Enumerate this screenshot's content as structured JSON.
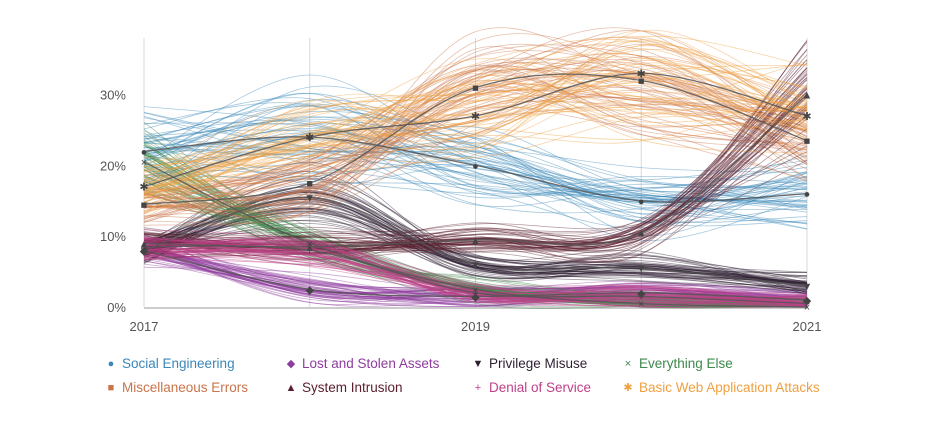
{
  "chart_data": {
    "type": "line",
    "x": [
      2017,
      2018,
      2019,
      2020,
      2021
    ],
    "xtick_labels": [
      "2017",
      "2019",
      "2021"
    ],
    "xtick_positions": [
      2017,
      2019,
      2021
    ],
    "ytick_labels": [
      "0%",
      "10%",
      "20%",
      "30%"
    ],
    "ytick_values": [
      0,
      10,
      20,
      30
    ],
    "ylim": [
      0,
      38
    ],
    "xlim": [
      2017,
      2021
    ],
    "grid": "vertical",
    "legend_position": "bottom",
    "series": [
      {
        "name": "Social Engineering",
        "color": "#3a87b8",
        "marker": "●",
        "values": [
          22,
          24,
          20,
          15,
          16
        ]
      },
      {
        "name": "Lost and Stolen Assets",
        "color": "#8e3c9e",
        "marker": "◆",
        "values": [
          8,
          2.5,
          1.5,
          2,
          1
        ]
      },
      {
        "name": "Privilege Misuse",
        "color": "#2e1f33",
        "marker": "▼",
        "values": [
          8,
          15.5,
          6,
          5.5,
          3
        ]
      },
      {
        "name": "Everything Else",
        "color": "#3d8a4a",
        "marker": "×",
        "values": [
          20.5,
          9,
          2.5,
          0.5,
          0
        ]
      },
      {
        "name": "Miscellaneous Errors",
        "color": "#c9744a",
        "marker": "■",
        "values": [
          14.5,
          17.5,
          31,
          32,
          23.5
        ]
      },
      {
        "name": "System Intrusion",
        "color": "#5a1f2e",
        "marker": "▲",
        "values": [
          9,
          8.5,
          9.5,
          10.5,
          30
        ]
      },
      {
        "name": "Denial of Service",
        "color": "#c0408a",
        "marker": "+",
        "values": [
          8.5,
          8,
          2,
          1.5,
          0.5
        ]
      },
      {
        "name": "Basic Web Application Attacks",
        "color": "#efa040",
        "marker": "✱",
        "values": [
          17,
          24,
          27,
          33,
          27
        ]
      }
    ],
    "mean_line_color": "#555555"
  }
}
